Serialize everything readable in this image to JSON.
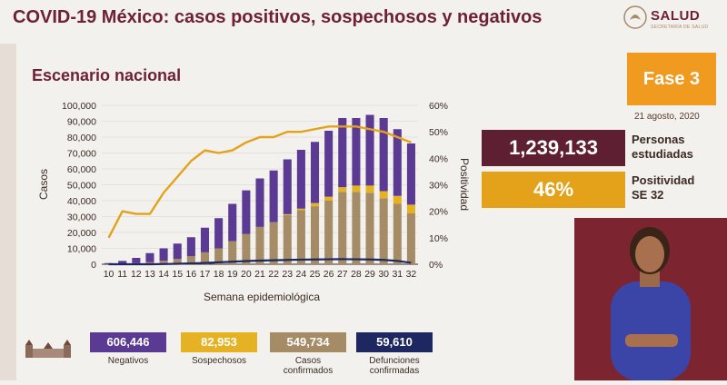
{
  "header": {
    "title": "COVID-19 México: casos positivos, sospechosos y negativos",
    "logo_text": "SALUD",
    "logo_sub": "SECRETARÍA DE SALUD"
  },
  "subtitle": "Escenario nacional",
  "phase": "Fase 3",
  "date": "21 agosto, 2020",
  "stats": {
    "studied_value": "1,239,133",
    "studied_label_1": "Personas",
    "studied_label_2": "estudiadas",
    "positivity_value": "46%",
    "positivity_label_1": "Positividad",
    "positivity_label_2": "SE 32"
  },
  "legend": [
    {
      "value": "606,446",
      "label_1": "Negativos",
      "label_2": "",
      "color": "#5b3a93"
    },
    {
      "value": "82,953",
      "label_1": "Sospechosos",
      "label_2": "",
      "color": "#e5b224"
    },
    {
      "value": "549,734",
      "label_1": "Casos",
      "label_2": "confirmados",
      "color": "#a68c66"
    },
    {
      "value": "59,610",
      "label_1": "Defunciones",
      "label_2": "confirmadas",
      "color": "#1f2760"
    }
  ],
  "colors": {
    "negativos": "#5b3a93",
    "sospechosos": "#e5b224",
    "confirmados": "#a68c66",
    "defunciones": "#1f2760",
    "positividad": "#e3a21a",
    "brand": "#6e2133"
  },
  "chart_data": {
    "type": "bar",
    "stacked": true,
    "xlabel": "Semana epidemiológica",
    "ylabel": "Casos",
    "y2label": "Positividad",
    "ylim": [
      0,
      100000
    ],
    "y2lim": [
      0,
      60
    ],
    "yticks": [
      "0",
      "10,000",
      "20,000",
      "30,000",
      "40,000",
      "50,000",
      "60,000",
      "70,000",
      "80,000",
      "90,000",
      "100,000"
    ],
    "y2ticks": [
      "0%",
      "10%",
      "20%",
      "30%",
      "40%",
      "50%",
      "60%"
    ],
    "categories": [
      "10",
      "11",
      "12",
      "13",
      "14",
      "15",
      "16",
      "17",
      "18",
      "19",
      "20",
      "21",
      "22",
      "23",
      "24",
      "25",
      "26",
      "27",
      "28",
      "29",
      "30",
      "31",
      "32"
    ],
    "series": [
      {
        "name": "Casos confirmados",
        "values": [
          100,
          300,
          700,
          1300,
          2200,
          3300,
          5000,
          7500,
          10000,
          14500,
          19000,
          23500,
          26500,
          31000,
          34000,
          36500,
          40000,
          45500,
          45500,
          45000,
          41500,
          38000,
          32000
        ]
      },
      {
        "name": "Sospechosos",
        "values": [
          0,
          0,
          0,
          0,
          0,
          0,
          0,
          0,
          0,
          0,
          0,
          0,
          0,
          500,
          1000,
          2000,
          2500,
          3000,
          4000,
          4500,
          4500,
          5000,
          5500
        ]
      },
      {
        "name": "Negativos",
        "values": [
          600,
          1800,
          3300,
          5700,
          7800,
          9700,
          12000,
          15500,
          19000,
          23500,
          27500,
          30500,
          32500,
          34500,
          37000,
          38500,
          41500,
          43500,
          42500,
          44500,
          46000,
          42000,
          38500
        ]
      }
    ],
    "lines": [
      {
        "name": "Defunciones confirmadas",
        "axis": "left",
        "values": [
          0,
          0,
          0,
          20,
          100,
          300,
          500,
          800,
          1200,
          1600,
          2000,
          2300,
          2500,
          2700,
          2900,
          3000,
          3100,
          3200,
          3100,
          3000,
          2700,
          2100,
          900
        ]
      },
      {
        "name": "Positividad",
        "axis": "right",
        "values": [
          10,
          20,
          19,
          19,
          27,
          33,
          39,
          43,
          42,
          43,
          46,
          48,
          48,
          50,
          50,
          51,
          52,
          52,
          52,
          51,
          50,
          48,
          46
        ]
      }
    ]
  }
}
